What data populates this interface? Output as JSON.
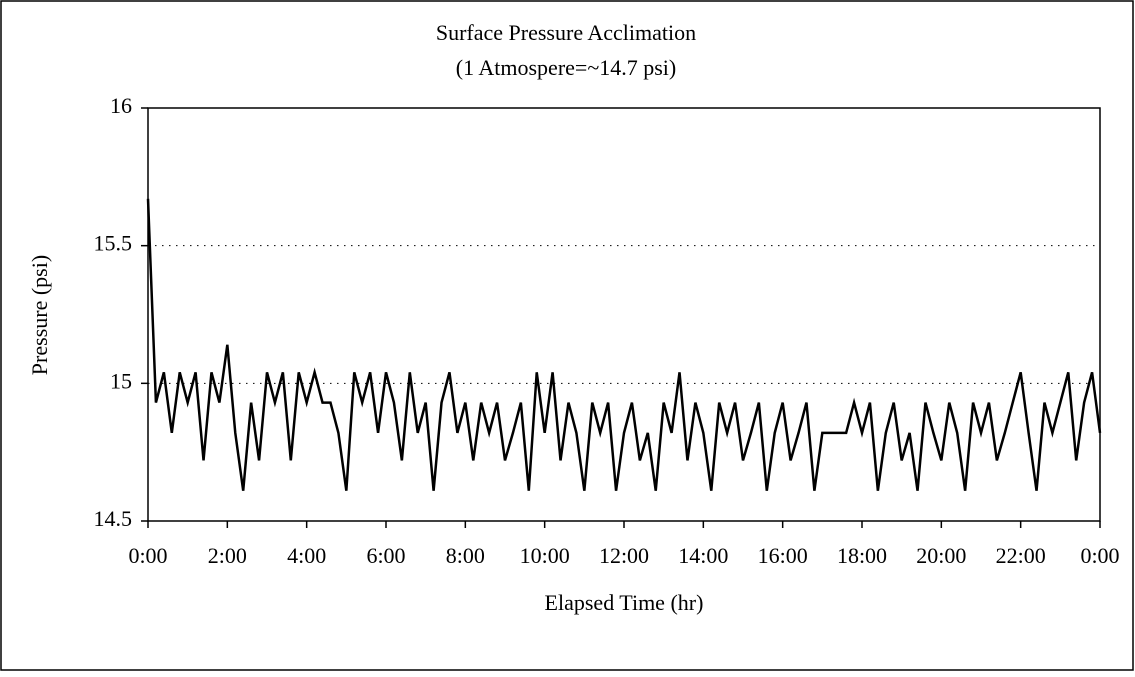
{
  "chart_data": {
    "type": "line",
    "title": "Surface Pressure Acclimation",
    "subtitle": "(1 Atmospere=~14.7 psi)",
    "x_label": "Elapsed Time (hr)",
    "y_label": "Pressure (psi)",
    "color": "#000000",
    "grid": true,
    "x": [
      0,
      0.2,
      0.4,
      0.6,
      0.8,
      1,
      1.2,
      1.4,
      1.6,
      1.8,
      2,
      2.2,
      2.4,
      2.6,
      2.8,
      3,
      3.2,
      3.4,
      3.6,
      3.8,
      4,
      4.2,
      4.4,
      4.6,
      4.8,
      5,
      5.2,
      5.4,
      5.6,
      5.8,
      6,
      6.2,
      6.4,
      6.6,
      6.8,
      7,
      7.2,
      7.4,
      7.6,
      7.8,
      8,
      8.2,
      8.4,
      8.6,
      8.8,
      9,
      9.2,
      9.4,
      9.6,
      9.8,
      10,
      10.2,
      10.4,
      10.6,
      10.8,
      11,
      11.2,
      11.4,
      11.6,
      11.8,
      12,
      12.2,
      12.4,
      12.6,
      12.8,
      13,
      13.2,
      13.4,
      13.6,
      13.8,
      14,
      14.2,
      14.4,
      14.6,
      14.8,
      15,
      15.2,
      15.4,
      15.6,
      15.8,
      16,
      16.2,
      16.4,
      16.6,
      16.8,
      17,
      17.2,
      17.4,
      17.6,
      17.8,
      18,
      18.2,
      18.4,
      18.6,
      18.8,
      19,
      19.2,
      19.4,
      19.6,
      19.8,
      20,
      20.2,
      20.4,
      20.6,
      20.8,
      21,
      21.2,
      21.4,
      21.6,
      21.8,
      22,
      22.2,
      22.4,
      22.6,
      22.8,
      23,
      23.2,
      23.4,
      23.6,
      23.8,
      24
    ],
    "values": [
      15.67,
      14.93,
      15.04,
      14.82,
      15.04,
      14.93,
      15.04,
      14.72,
      15.04,
      14.93,
      15.14,
      14.82,
      14.61,
      14.93,
      14.72,
      15.04,
      14.93,
      15.04,
      14.72,
      15.04,
      14.93,
      15.04,
      14.93,
      14.93,
      14.82,
      14.61,
      15.04,
      14.93,
      15.04,
      14.82,
      15.04,
      14.93,
      14.72,
      15.04,
      14.82,
      14.93,
      14.61,
      14.93,
      15.04,
      14.82,
      14.93,
      14.72,
      14.93,
      14.82,
      14.93,
      14.72,
      14.82,
      14.93,
      14.61,
      15.04,
      14.82,
      15.04,
      14.72,
      14.93,
      14.82,
      14.61,
      14.93,
      14.82,
      14.93,
      14.61,
      14.82,
      14.93,
      14.72,
      14.82,
      14.61,
      14.93,
      14.82,
      15.04,
      14.72,
      14.93,
      14.82,
      14.61,
      14.93,
      14.82,
      14.93,
      14.72,
      14.82,
      14.93,
      14.61,
      14.82,
      14.93,
      14.72,
      14.82,
      14.93,
      14.61,
      14.82,
      14.82,
      14.82,
      14.82,
      14.93,
      14.82,
      14.93,
      14.61,
      14.82,
      14.93,
      14.72,
      14.82,
      14.61,
      14.93,
      14.82,
      14.72,
      14.93,
      14.82,
      14.61,
      14.93,
      14.82,
      14.93,
      14.72,
      14.82,
      14.93,
      15.04,
      14.82,
      14.61,
      14.93,
      14.82,
      14.93,
      15.04,
      14.72,
      14.93,
      15.04,
      14.82
    ],
    "xlim": [
      0,
      24
    ],
    "xticks": [
      {
        "value": 0,
        "label": "0:00"
      },
      {
        "value": 2,
        "label": "2:00"
      },
      {
        "value": 4,
        "label": "4:00"
      },
      {
        "value": 6,
        "label": "6:00"
      },
      {
        "value": 8,
        "label": "8:00"
      },
      {
        "value": 10,
        "label": "10:00"
      },
      {
        "value": 12,
        "label": "12:00"
      },
      {
        "value": 14,
        "label": "14:00"
      },
      {
        "value": 16,
        "label": "16:00"
      },
      {
        "value": 18,
        "label": "18:00"
      },
      {
        "value": 20,
        "label": "20:00"
      },
      {
        "value": 22,
        "label": "22:00"
      },
      {
        "value": 24,
        "label": "0:00"
      }
    ],
    "ylim": [
      14.5,
      16
    ],
    "yticks": [
      14.5,
      15,
      15.5,
      16
    ]
  }
}
